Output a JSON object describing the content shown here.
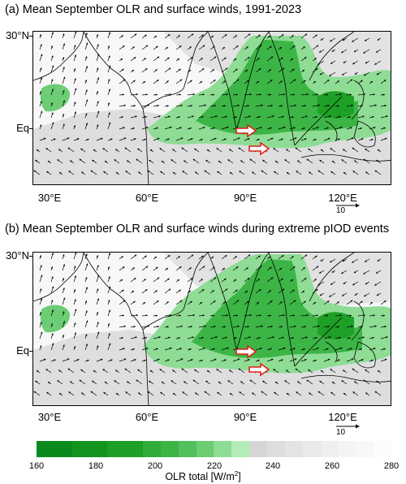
{
  "panels": [
    {
      "id": "a",
      "title": "(a) Mean September OLR and surface winds, 1991-2023",
      "lat_labels": [
        "30°N",
        "Eq"
      ],
      "lon_labels": [
        "30°E",
        "60°E",
        "90°E",
        "120°E"
      ],
      "reference_vector_label": "10",
      "highlight_arrows": "2 red outlined arrows pointing east near 95°E, 5°N and 98°E, 1°S"
    },
    {
      "id": "b",
      "title": "(b) Mean September OLR and surface winds during extreme pIOD events",
      "lat_labels": [
        "30°N",
        "Eq"
      ],
      "lon_labels": [
        "30°E",
        "60°E",
        "90°E",
        "120°E"
      ],
      "reference_vector_label": "10",
      "highlight_arrows": "2 red outlined arrows pointing east near 95°E, 5°N and 98°E, 1°S"
    }
  ],
  "colorbar": {
    "title": "OLR total [W/m",
    "title_sup": "2",
    "title_end": "]",
    "tick_labels": [
      "160",
      "180",
      "200",
      "220",
      "240",
      "260",
      "280"
    ],
    "colors": [
      "#0a8a1c",
      "#0a8a1c",
      "#12951f",
      "#12951f",
      "#1ea026",
      "#1ea026",
      "#2fae3a",
      "#3cb546",
      "#52c05c",
      "#6ccd74",
      "#8fdc95",
      "#b3ecb7",
      "#d6d6d6",
      "#dddddd",
      "#e3e3e3",
      "#e9e9e9",
      "#efefef",
      "#f4f4f4",
      "#f8f8f8",
      "#fcfcfc"
    ]
  }
}
